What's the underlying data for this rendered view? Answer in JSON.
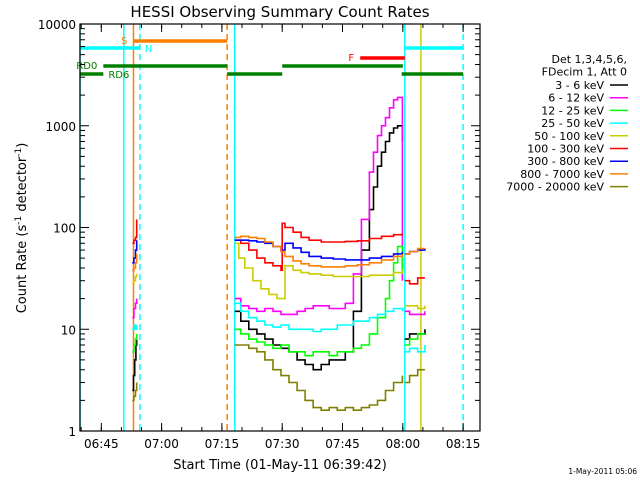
{
  "chart_data": {
    "type": "line",
    "title": "HESSI Observing Summary Count Rates",
    "xlabel": "Start Time (01-May-11 06:39:42)",
    "ylabel": "Count Rate (s^-1 detector^-1)",
    "yscale": "log",
    "ylim": [
      1,
      10000
    ],
    "xlim_minutes_after_0639_42": [
      0,
      99.5
    ],
    "x_ticks": [
      "06:45",
      "07:00",
      "07:15",
      "07:30",
      "07:45",
      "08:00",
      "08:15"
    ],
    "x_ticks_minutes_after_0639_42": [
      5.3,
      20.3,
      35.3,
      50.3,
      65.3,
      80.3,
      95.3
    ],
    "y_ticks": [
      "1",
      "10",
      "100",
      "1000",
      "10000"
    ],
    "y_tick_values": [
      1,
      10,
      100,
      1000,
      10000
    ],
    "grid": false,
    "legend_position": "right",
    "legend_header": [
      "Det 1,3,4,5,6,",
      "FDecim 1, Att 0"
    ],
    "footer_timestamp": "1-May-2011 05:06",
    "series": [
      {
        "name": "3 - 6 keV",
        "color": "#000000",
        "segments": [
          {
            "t": [
              13.0,
              13.3,
              13.6,
              13.9,
              14.1
            ],
            "y": [
              2.5,
              3.5,
              5,
              7,
              8
            ]
          },
          {
            "t": [
              38.5,
              40,
              42,
              44,
              46,
              48,
              50,
              52,
              54,
              56,
              58,
              60,
              62,
              64,
              66,
              68,
              70,
              72,
              73,
              74,
              75,
              76,
              77,
              78,
              79,
              80.2
            ],
            "y": [
              15,
              12,
              10,
              9,
              8,
              7,
              6.5,
              6,
              5,
              4.5,
              4,
              4.5,
              5,
              5,
              6,
              15,
              60,
              150,
              250,
              400,
              550,
              700,
              850,
              950,
              1000,
              700
            ]
          },
          {
            "t": [
              80.8,
              82,
              84,
              85.8
            ],
            "y": [
              8,
              9,
              9,
              10
            ]
          }
        ]
      },
      {
        "name": "6 - 12 keV",
        "color": "#ff00ff",
        "segments": [
          {
            "t": [
              13.0,
              13.4,
              13.8,
              14.1
            ],
            "y": [
              13,
              16,
              18,
              20
            ]
          },
          {
            "t": [
              38.5,
              40,
              42,
              44,
              46,
              48,
              50,
              52,
              54,
              56,
              58,
              60,
              62,
              64,
              66,
              68,
              70,
              72,
              73,
              74,
              75,
              76,
              77,
              78,
              79,
              80.2
            ],
            "y": [
              20,
              17,
              16,
              15,
              16,
              15,
              14,
              14,
              15,
              16,
              17,
              17,
              16,
              16,
              18,
              35,
              120,
              350,
              550,
              800,
              1000,
              1200,
              1500,
              1800,
              1900,
              30
            ]
          },
          {
            "t": [
              80.8,
              82,
              84,
              85.8
            ],
            "y": [
              15,
              14,
              14,
              15
            ]
          }
        ]
      },
      {
        "name": "12 - 25 keV",
        "color": "#00ff00",
        "segments": [
          {
            "t": [
              13.0,
              13.4,
              13.8,
              14.1
            ],
            "y": [
              6,
              7,
              8,
              9
            ]
          },
          {
            "t": [
              38.5,
              40,
              42,
              44,
              46,
              48,
              50,
              52,
              54,
              56,
              58,
              60,
              62,
              64,
              66,
              68,
              70,
              72,
              74,
              76,
              77,
              78,
              79,
              80.2
            ],
            "y": [
              10,
              9,
              8,
              7.5,
              7,
              6.5,
              7,
              6,
              6,
              5.5,
              6,
              6,
              5.5,
              6,
              6,
              6.5,
              7,
              9,
              13,
              20,
              30,
              45,
              65,
              35
            ]
          },
          {
            "t": [
              80.8,
              82,
              84,
              85.8
            ],
            "y": [
              7,
              8,
              9,
              9
            ]
          }
        ]
      },
      {
        "name": "25 - 50 keV",
        "color": "#00ffff",
        "segments": [
          {
            "t": [
              13.0,
              13.4,
              13.8,
              14.1
            ],
            "y": [
              10,
              11,
              10,
              11
            ]
          },
          {
            "t": [
              38.5,
              40,
              42,
              44,
              46,
              48,
              50,
              52,
              54,
              56,
              58,
              60,
              62,
              64,
              66,
              68,
              70,
              72,
              74,
              76,
              78,
              80.2
            ],
            "y": [
              18,
              15,
              13,
              12,
              11,
              10.5,
              11,
              10,
              10,
              10,
              9.5,
              10,
              10,
              11,
              11,
              12,
              12,
              13,
              14,
              15,
              16,
              15
            ]
          },
          {
            "t": [
              80.8,
              82,
              84,
              85.8
            ],
            "y": [
              6,
              6.5,
              6,
              7
            ]
          }
        ]
      },
      {
        "name": "50 - 100 keV",
        "color": "#cccc00",
        "segments": [
          {
            "t": [
              13.0,
              13.4,
              13.8,
              14.1
            ],
            "y": [
              28,
              30,
              33,
              35
            ]
          },
          {
            "t": [
              38.5,
              39.5,
              41,
              43,
              45,
              47,
              49,
              50.3,
              51,
              53,
              55,
              57,
              60,
              63,
              66,
              69,
              72,
              75,
              78,
              80.2
            ],
            "y": [
              70,
              50,
              40,
              30,
              25,
              22,
              20,
              20,
              42,
              38,
              36,
              35,
              34,
              33,
              33,
              33,
              34,
              34,
              36,
              38
            ]
          },
          {
            "t": [
              80.8,
              82,
              84,
              85.8
            ],
            "y": [
              17,
              17,
              16,
              17
            ]
          }
        ]
      },
      {
        "name": "100 - 300 keV",
        "color": "#ff0000",
        "segments": [
          {
            "t": [
              13.0,
              13.4,
              13.8,
              14.1
            ],
            "y": [
              70,
              75,
              80,
              120
            ]
          },
          {
            "t": [
              38.5,
              40,
              42,
              44,
              46,
              48,
              50,
              50.3,
              51,
              53,
              55,
              57,
              60,
              63,
              66,
              69,
              72,
              75,
              78,
              80.2
            ],
            "y": [
              75,
              70,
              60,
              50,
              45,
              42,
              38,
              110,
              100,
              90,
              80,
              75,
              72,
              72,
              73,
              74,
              78,
              82,
              85,
              88
            ]
          },
          {
            "t": [
              80.8,
              82,
              84,
              85.8
            ],
            "y": [
              30,
              28,
              32,
              32
            ]
          }
        ]
      },
      {
        "name": "300 - 800 keV",
        "color": "#0000ff",
        "segments": [
          {
            "t": [
              13.0,
              13.4,
              13.8,
              14.1
            ],
            "y": [
              45,
              50,
              60,
              75
            ]
          },
          {
            "t": [
              38.5,
              40,
              42,
              44,
              46,
              48,
              50,
              51,
              53,
              55,
              57,
              60,
              63,
              66,
              69,
              72,
              75,
              78,
              80.2
            ],
            "y": [
              75,
              75,
              74,
              72,
              70,
              65,
              60,
              70,
              63,
              57,
              52,
              50,
              49,
              48,
              48,
              50,
              52,
              55,
              58
            ]
          },
          {
            "t": [
              80.8,
              82,
              84,
              85.8
            ],
            "y": [
              55,
              58,
              60,
              62
            ]
          }
        ]
      },
      {
        "name": "800 - 7000 keV",
        "color": "#ff8000",
        "segments": [
          {
            "t": [
              13.0,
              13.4,
              13.8,
              14.1
            ],
            "y": [
              38,
              40,
              45,
              55
            ]
          },
          {
            "t": [
              38.5,
              40,
              42,
              44,
              46,
              48,
              50,
              51,
              53,
              55,
              57,
              60,
              63,
              66,
              69,
              72,
              75,
              78,
              80.2
            ],
            "y": [
              80,
              82,
              80,
              78,
              72,
              65,
              58,
              52,
              47,
              44,
              42,
              41,
              41,
              42,
              43,
              45,
              48,
              52,
              55
            ]
          },
          {
            "t": [
              80.8,
              82,
              84,
              85.8
            ],
            "y": [
              55,
              58,
              62,
              62
            ]
          }
        ]
      },
      {
        "name": "7000 - 20000 keV",
        "color": "#808000",
        "segments": [
          {
            "t": [
              13.0,
              13.4,
              13.8,
              14.1
            ],
            "y": [
              2,
              2.2,
              2.5,
              3
            ]
          },
          {
            "t": [
              38.5,
              40,
              42,
              44,
              46,
              48,
              50,
              52,
              54,
              56,
              58,
              60,
              62,
              64,
              66,
              68,
              70,
              72,
              74,
              76,
              78,
              80.2
            ],
            "y": [
              7,
              7,
              6.5,
              6,
              5,
              4,
              3.5,
              3,
              2.5,
              2,
              1.7,
              1.6,
              1.7,
              1.6,
              1.7,
              1.6,
              1.7,
              1.8,
              2,
              2.5,
              3,
              3.5
            ]
          },
          {
            "t": [
              80.8,
              82,
              84,
              85.8
            ],
            "y": [
              3,
              3.5,
              4,
              4
            ]
          }
        ]
      }
    ],
    "vertical_markers": [
      {
        "t": 0.0,
        "color": "#00ffff",
        "style": "solid"
      },
      {
        "t": 10.9,
        "color": "#00ffff",
        "style": "solid"
      },
      {
        "t": 13.3,
        "color": "#ff8000",
        "style": "solid"
      },
      {
        "t": 14.9,
        "color": "#00ffff",
        "style": "dashed"
      },
      {
        "t": 36.6,
        "color": "#ff8000",
        "style": "dashed"
      },
      {
        "t": 38.5,
        "color": "#00ffff",
        "style": "solid"
      },
      {
        "t": 80.8,
        "color": "#00ffff",
        "style": "solid"
      },
      {
        "t": 84.8,
        "color": "#cccc00",
        "style": "solid"
      },
      {
        "t": 95.3,
        "color": "#00ffff",
        "style": "dashed"
      }
    ],
    "status_bars": [
      {
        "label": "S",
        "color": "#ff8000",
        "t_start": 13.3,
        "t_end": 36.6,
        "level": 1,
        "label_side": "left"
      },
      {
        "label": "N",
        "color": "#00ffff",
        "t_start": 0.0,
        "t_end": 14.9,
        "level": 2,
        "label_side": "right"
      },
      {
        "label": "N",
        "color": "#00ffff",
        "t_start": 80.8,
        "t_end": 95.3,
        "level": 2,
        "label_side": "none"
      },
      {
        "label": "F",
        "color": "#ff0000",
        "t_start": 69.7,
        "t_end": 80.8,
        "level": 3,
        "label_side": "left"
      },
      {
        "label": "RD0",
        "color": "#008000",
        "t_start": 5.8,
        "t_end": 36.6,
        "level": 4,
        "label_side": "left"
      },
      {
        "label": "RD0",
        "color": "#008000",
        "t_start": 50.3,
        "t_end": 80.3,
        "level": 4,
        "label_side": "none"
      },
      {
        "label": "RD6",
        "color": "#008000",
        "t_start": 0.0,
        "t_end": 5.8,
        "level": 5,
        "label_side": "right"
      },
      {
        "label": "RD6",
        "color": "#008000",
        "t_start": 36.6,
        "t_end": 50.3,
        "level": 5,
        "label_side": "none"
      },
      {
        "label": "RD6",
        "color": "#008000",
        "t_start": 80.0,
        "t_end": 95.3,
        "level": 5,
        "label_side": "none"
      }
    ]
  }
}
